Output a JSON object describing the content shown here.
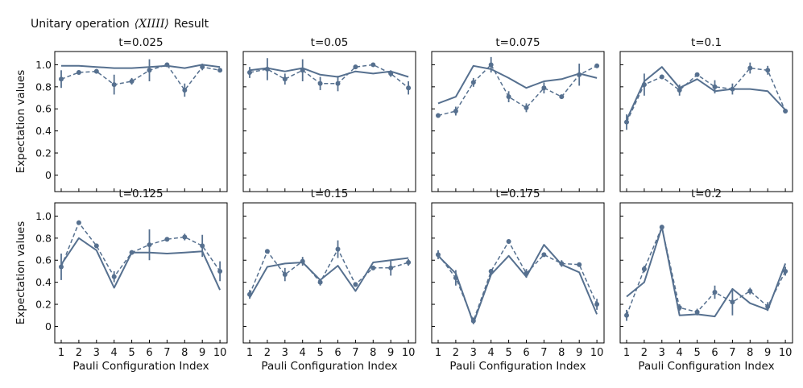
{
  "figure": {
    "title_prefix": "Unitary operation",
    "title_operator": "⟨XIIII⟩",
    "title_suffix": "Result",
    "line_color": "#56708f"
  },
  "chart_data": [
    {
      "type": "line",
      "title": "t=0.025",
      "xlabel": "",
      "ylabel": "Expectation values",
      "x": [
        1,
        2,
        3,
        4,
        5,
        6,
        7,
        8,
        9,
        10
      ],
      "xticks": [
        "1",
        "2",
        "3",
        "4",
        "5",
        "6",
        "7",
        "8",
        "9",
        "10"
      ],
      "yticks": [
        "0",
        "0.2",
        "0.4",
        "0.6",
        "0.8",
        "1.0"
      ],
      "ylim": [
        -0.15,
        1.12
      ],
      "series": [
        {
          "style": "solid",
          "values": [
            0.99,
            0.99,
            0.98,
            0.97,
            0.97,
            0.98,
            0.99,
            0.97,
            1.0,
            0.98
          ]
        },
        {
          "style": "dashed",
          "values": [
            0.87,
            0.93,
            0.94,
            0.82,
            0.85,
            0.95,
            1.0,
            0.77,
            0.98,
            0.95
          ],
          "errors": [
            0.08,
            0.02,
            0.02,
            0.09,
            0.03,
            0.1,
            0.02,
            0.06,
            0.03,
            0.02
          ]
        }
      ]
    },
    {
      "type": "line",
      "title": "t=0.05",
      "xlabel": "",
      "ylabel": "",
      "x": [
        1,
        2,
        3,
        4,
        5,
        6,
        7,
        8,
        9,
        10
      ],
      "xticks": [
        "1",
        "2",
        "3",
        "4",
        "5",
        "6",
        "7",
        "8",
        "9",
        "10"
      ],
      "yticks": [
        "0",
        "0.2",
        "0.4",
        "0.6",
        "0.8",
        "1.0"
      ],
      "ylim": [
        -0.15,
        1.12
      ],
      "series": [
        {
          "style": "solid",
          "values": [
            0.95,
            0.97,
            0.94,
            0.97,
            0.91,
            0.89,
            0.94,
            0.92,
            0.94,
            0.89
          ]
        },
        {
          "style": "dashed",
          "values": [
            0.93,
            0.96,
            0.87,
            0.95,
            0.83,
            0.83,
            0.98,
            1.0,
            0.92,
            0.79
          ],
          "errors": [
            0.05,
            0.1,
            0.05,
            0.1,
            0.06,
            0.07,
            0.02,
            0.01,
            0.03,
            0.06
          ]
        }
      ]
    },
    {
      "type": "line",
      "title": "t=0.075",
      "xlabel": "",
      "ylabel": "",
      "x": [
        1,
        2,
        3,
        4,
        5,
        6,
        7,
        8,
        9,
        10
      ],
      "xticks": [
        "1",
        "2",
        "3",
        "4",
        "5",
        "6",
        "7",
        "8",
        "9",
        "10"
      ],
      "yticks": [
        "0",
        "0.2",
        "0.4",
        "0.6",
        "0.8",
        "1.0"
      ],
      "ylim": [
        -0.15,
        1.12
      ],
      "series": [
        {
          "style": "solid",
          "values": [
            0.65,
            0.71,
            0.99,
            0.96,
            0.88,
            0.79,
            0.85,
            0.87,
            0.92,
            0.88
          ]
        },
        {
          "style": "dashed",
          "values": [
            0.54,
            0.58,
            0.84,
            1.0,
            0.71,
            0.61,
            0.79,
            0.71,
            0.91,
            0.99
          ],
          "errors": [
            0.02,
            0.04,
            0.04,
            0.07,
            0.05,
            0.04,
            0.05,
            0.02,
            0.1,
            0.02
          ]
        }
      ]
    },
    {
      "type": "line",
      "title": "t=0.1",
      "xlabel": "",
      "ylabel": "",
      "x": [
        1,
        2,
        3,
        4,
        5,
        6,
        7,
        8,
        9,
        10
      ],
      "xticks": [
        "1",
        "2",
        "3",
        "4",
        "5",
        "6",
        "7",
        "8",
        "9",
        "10"
      ],
      "yticks": [
        "0",
        "0.2",
        "0.4",
        "0.6",
        "0.8",
        "1.0"
      ],
      "ylim": [
        -0.15,
        1.12
      ],
      "series": [
        {
          "style": "solid",
          "values": [
            0.5,
            0.85,
            0.98,
            0.79,
            0.87,
            0.76,
            0.78,
            0.78,
            0.76,
            0.59
          ]
        },
        {
          "style": "dashed",
          "values": [
            0.48,
            0.82,
            0.89,
            0.77,
            0.91,
            0.8,
            0.78,
            0.97,
            0.95,
            0.58
          ],
          "errors": [
            0.07,
            0.1,
            0.02,
            0.05,
            0.02,
            0.06,
            0.05,
            0.05,
            0.04,
            0.02
          ]
        }
      ]
    },
    {
      "type": "line",
      "title": "t=0.125",
      "xlabel": "Pauli Configuration Index",
      "ylabel": "Expectation values",
      "x": [
        1,
        2,
        3,
        4,
        5,
        6,
        7,
        8,
        9,
        10
      ],
      "xticks": [
        "1",
        "2",
        "3",
        "4",
        "5",
        "6",
        "7",
        "8",
        "9",
        "10"
      ],
      "yticks": [
        "0",
        "0.2",
        "0.4",
        "0.6",
        "0.8",
        "1.0"
      ],
      "ylim": [
        -0.15,
        1.12
      ],
      "series": [
        {
          "style": "solid",
          "values": [
            0.56,
            0.8,
            0.69,
            0.35,
            0.67,
            0.67,
            0.66,
            0.67,
            0.68,
            0.33
          ]
        },
        {
          "style": "dashed",
          "values": [
            0.54,
            0.94,
            0.73,
            0.45,
            0.67,
            0.74,
            0.79,
            0.81,
            0.73,
            0.5
          ],
          "errors": [
            0.12,
            0.02,
            0.02,
            0.05,
            0.02,
            0.14,
            0.02,
            0.03,
            0.1,
            0.09
          ]
        }
      ]
    },
    {
      "type": "line",
      "title": "t=0.15",
      "xlabel": "Pauli Configuration Index",
      "ylabel": "",
      "x": [
        1,
        2,
        3,
        4,
        5,
        6,
        7,
        8,
        9,
        10
      ],
      "xticks": [
        "1",
        "2",
        "3",
        "4",
        "5",
        "6",
        "7",
        "8",
        "9",
        "10"
      ],
      "yticks": [
        "0",
        "0.2",
        "0.4",
        "0.6",
        "0.8",
        "1.0"
      ],
      "ylim": [
        -0.15,
        1.12
      ],
      "series": [
        {
          "style": "solid",
          "values": [
            0.26,
            0.54,
            0.57,
            0.58,
            0.42,
            0.55,
            0.32,
            0.58,
            0.6,
            0.62
          ]
        },
        {
          "style": "dashed",
          "values": [
            0.29,
            0.68,
            0.47,
            0.59,
            0.4,
            0.7,
            0.38,
            0.53,
            0.53,
            0.58
          ],
          "errors": [
            0.04,
            0.02,
            0.06,
            0.04,
            0.03,
            0.08,
            0.02,
            0.02,
            0.07,
            0.03
          ]
        }
      ]
    },
    {
      "type": "line",
      "title": "t=0.175",
      "xlabel": "Pauli Configuration Index",
      "ylabel": "",
      "x": [
        1,
        2,
        3,
        4,
        5,
        6,
        7,
        8,
        9,
        10
      ],
      "xticks": [
        "1",
        "2",
        "3",
        "4",
        "5",
        "6",
        "7",
        "8",
        "9",
        "10"
      ],
      "yticks": [
        "0",
        "0.2",
        "0.4",
        "0.6",
        "0.8",
        "1.0"
      ],
      "ylim": [
        -0.15,
        1.12
      ],
      "series": [
        {
          "style": "solid",
          "values": [
            0.64,
            0.48,
            0.03,
            0.47,
            0.64,
            0.45,
            0.74,
            0.56,
            0.49,
            0.11
          ]
        },
        {
          "style": "dashed",
          "values": [
            0.65,
            0.44,
            0.05,
            0.5,
            0.77,
            0.48,
            0.65,
            0.57,
            0.56,
            0.2
          ],
          "errors": [
            0.04,
            0.07,
            0.03,
            0.02,
            0.02,
            0.04,
            0.02,
            0.03,
            0.02,
            0.05
          ]
        }
      ]
    },
    {
      "type": "line",
      "title": "t=0.2",
      "xlabel": "Pauli Configuration Index",
      "ylabel": "",
      "x": [
        1,
        2,
        3,
        4,
        5,
        6,
        7,
        8,
        9,
        10
      ],
      "xticks": [
        "1",
        "2",
        "3",
        "4",
        "5",
        "6",
        "7",
        "8",
        "9",
        "10"
      ],
      "yticks": [
        "0",
        "0.2",
        "0.4",
        "0.6",
        "0.8",
        "1.0"
      ],
      "ylim": [
        -0.15,
        1.12
      ],
      "series": [
        {
          "style": "solid",
          "values": [
            0.27,
            0.4,
            0.9,
            0.1,
            0.11,
            0.09,
            0.34,
            0.21,
            0.15,
            0.57
          ]
        },
        {
          "style": "dashed",
          "values": [
            0.1,
            0.52,
            0.9,
            0.17,
            0.13,
            0.31,
            0.22,
            0.32,
            0.18,
            0.5
          ],
          "errors": [
            0.05,
            0.03,
            0.02,
            0.03,
            0.03,
            0.06,
            0.12,
            0.03,
            0.04,
            0.04
          ]
        }
      ]
    }
  ]
}
